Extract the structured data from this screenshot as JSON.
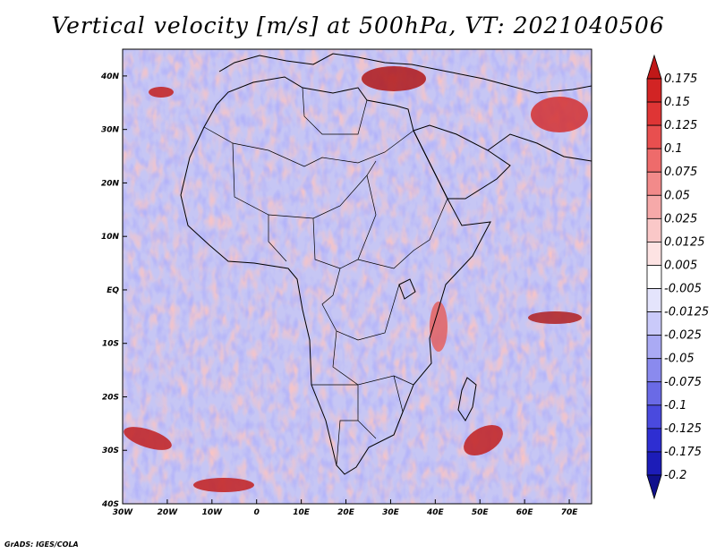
{
  "title": "Vertical velocity [m/s] at 500hPa, VT: 2021040506",
  "credit": "GrADS: IGES/COLA",
  "map": {
    "lon_range": [
      -30,
      75
    ],
    "lat_range": [
      -40,
      45
    ],
    "lon_ticks": [
      "30W",
      "20W",
      "10W",
      "0",
      "10E",
      "20E",
      "30E",
      "40E",
      "50E",
      "60E",
      "70E"
    ],
    "lat_ticks": [
      "40N",
      "30N",
      "20N",
      "10N",
      "EQ",
      "10S",
      "20S",
      "30S",
      "40S"
    ],
    "coastline_color": "#000000"
  },
  "colorbar": {
    "labels": [
      "0.175",
      "0.15",
      "0.125",
      "0.1",
      "0.075",
      "0.05",
      "0.025",
      "0.0125",
      "0.005",
      "-0.005",
      "-0.0125",
      "-0.025",
      "-0.05",
      "-0.075",
      "-0.1",
      "-0.125",
      "-0.175",
      "-0.2"
    ],
    "colors": [
      "#c01818",
      "#d22424",
      "#df3535",
      "#e84f4f",
      "#ee6b6b",
      "#f28a8a",
      "#f6a9a9",
      "#fac8c8",
      "#fde3e3",
      "#ffffff",
      "#e4e4fc",
      "#cacafa",
      "#aaaaf4",
      "#8a8aee",
      "#6a6ae6",
      "#4a4ade",
      "#2e2ed2",
      "#1c1cb8",
      "#10108c"
    ]
  }
}
